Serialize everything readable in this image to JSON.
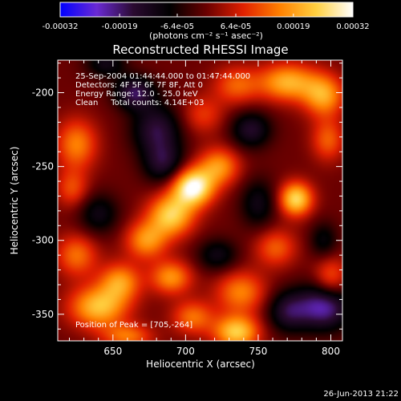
{
  "chart_data": {
    "type": "heatmap",
    "title": "Reconstructed RHESSI Image",
    "xlabel": "Heliocentric X (arcsec)",
    "ylabel": "Heliocentric Y (arcsec)",
    "xlim": [
      612,
      808
    ],
    "ylim": [
      -368,
      -178
    ],
    "xticks": [
      650,
      700,
      750,
      800
    ],
    "yticks": [
      -200,
      -250,
      -300,
      -350
    ],
    "colorbar": {
      "ticks": [
        "-0.00032",
        "-0.00019",
        "-6.4e-05",
        "6.4e-05",
        "0.00019",
        "0.00032"
      ],
      "tick_values": [
        -0.00032,
        -0.00019,
        -6.4e-05,
        6.4e-05,
        0.00019,
        0.00032
      ],
      "range": [
        -0.00032,
        0.00032
      ],
      "unit_label": "(photons cm⁻² s⁻¹ asec⁻²)",
      "colors": [
        "#0000ff",
        "#6a2ad4",
        "#2a0a30",
        "#000000",
        "#6a0000",
        "#e02000",
        "#ff8000",
        "#ffd040",
        "#ffffff"
      ]
    },
    "annotations": [
      "25-Sep-2004 01:44:44.000 to 01:47:44.000",
      "Detectors: 4F 5F 6F 7F 8F, Att 0",
      "Energy Range: 12.0 - 25.0 keV",
      "Clean     Total counts: 4.14E+03"
    ],
    "peak_label": "Position of Peak = [705,-264]",
    "peak": {
      "x": 705,
      "y": -264,
      "value": 0.00032
    },
    "sources": [
      {
        "x": 705,
        "y": -264,
        "sx": 10,
        "sy": 9,
        "v": 1.0
      },
      {
        "x": 690,
        "y": -283,
        "sx": 11,
        "sy": 10,
        "v": 0.75
      },
      {
        "x": 723,
        "y": -250,
        "sx": 10,
        "sy": 9,
        "v": 0.55
      },
      {
        "x": 673,
        "y": -300,
        "sx": 10,
        "sy": 9,
        "v": 0.55
      },
      {
        "x": 776,
        "y": -272,
        "sx": 8,
        "sy": 8,
        "v": 0.8
      },
      {
        "x": 770,
        "y": -193,
        "sx": 14,
        "sy": 9,
        "v": 0.65
      },
      {
        "x": 795,
        "y": -202,
        "sx": 10,
        "sy": 10,
        "v": 0.6
      },
      {
        "x": 735,
        "y": -195,
        "sx": 11,
        "sy": 9,
        "v": 0.4
      },
      {
        "x": 712,
        "y": -215,
        "sx": 10,
        "sy": 9,
        "v": 0.3
      },
      {
        "x": 625,
        "y": -235,
        "sx": 10,
        "sy": 12,
        "v": 0.5
      },
      {
        "x": 622,
        "y": -265,
        "sx": 8,
        "sy": 9,
        "v": 0.35
      },
      {
        "x": 625,
        "y": -310,
        "sx": 10,
        "sy": 10,
        "v": 0.45
      },
      {
        "x": 640,
        "y": -345,
        "sx": 14,
        "sy": 10,
        "v": 0.7
      },
      {
        "x": 655,
        "y": -328,
        "sx": 10,
        "sy": 9,
        "v": 0.55
      },
      {
        "x": 690,
        "y": -325,
        "sx": 10,
        "sy": 8,
        "v": 0.55
      },
      {
        "x": 735,
        "y": -362,
        "sx": 11,
        "sy": 8,
        "v": 0.75
      },
      {
        "x": 738,
        "y": -335,
        "sx": 12,
        "sy": 10,
        "v": 0.5
      },
      {
        "x": 705,
        "y": -352,
        "sx": 10,
        "sy": 8,
        "v": 0.45
      },
      {
        "x": 762,
        "y": -305,
        "sx": 10,
        "sy": 9,
        "v": 0.4
      },
      {
        "x": 798,
        "y": -232,
        "sx": 8,
        "sy": 10,
        "v": 0.4
      },
      {
        "x": 800,
        "y": -325,
        "sx": 8,
        "sy": 10,
        "v": 0.4
      },
      {
        "x": 660,
        "y": -365,
        "sx": 12,
        "sy": 6,
        "v": 0.45
      },
      {
        "x": 665,
        "y": -200,
        "sx": 10,
        "sy": 8,
        "v": -0.55
      },
      {
        "x": 680,
        "y": -225,
        "sx": 12,
        "sy": 12,
        "v": -0.5
      },
      {
        "x": 685,
        "y": -248,
        "sx": 10,
        "sy": 10,
        "v": -0.45
      },
      {
        "x": 640,
        "y": -282,
        "sx": 10,
        "sy": 10,
        "v": -0.35
      },
      {
        "x": 745,
        "y": -225,
        "sx": 10,
        "sy": 9,
        "v": -0.45
      },
      {
        "x": 750,
        "y": -275,
        "sx": 9,
        "sy": 12,
        "v": -0.35
      },
      {
        "x": 722,
        "y": -310,
        "sx": 10,
        "sy": 8,
        "v": -0.35
      },
      {
        "x": 795,
        "y": -345,
        "sx": 13,
        "sy": 11,
        "v": -0.7
      },
      {
        "x": 770,
        "y": -348,
        "sx": 10,
        "sy": 10,
        "v": -0.45
      },
      {
        "x": 795,
        "y": -300,
        "sx": 7,
        "sy": 9,
        "v": -0.3
      },
      {
        "x": 645,
        "y": -180,
        "sx": 10,
        "sy": 7,
        "v": -0.35
      }
    ]
  },
  "footer": {
    "timestamp": "26-Jun-2013 21:22"
  }
}
